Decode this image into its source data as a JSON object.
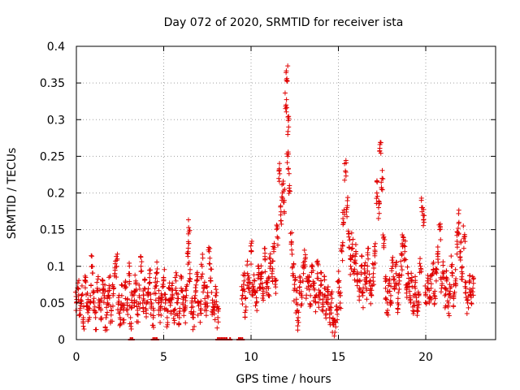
{
  "chart_data": {
    "type": "scatter",
    "title": "Day 072 of 2020, SRMTID for receiver ista",
    "xlabel": "GPS time / hours",
    "ylabel": "SRMTID / TECUs",
    "xlim": [
      0,
      24
    ],
    "ylim": [
      0,
      0.4
    ],
    "x_ticks": [
      0,
      5,
      10,
      15,
      20
    ],
    "x_tick_labels": [
      "0",
      "5",
      "10",
      "15",
      "20"
    ],
    "y_ticks": [
      0,
      0.05,
      0.1,
      0.15,
      0.2,
      0.25,
      0.3,
      0.35,
      0.4
    ],
    "y_tick_labels": [
      "0",
      "0.05",
      "0.1",
      "0.15",
      "0.2",
      "0.25",
      "0.3",
      "0.35",
      "0.4"
    ],
    "grid": true,
    "marker": "+",
    "color": "#e00000",
    "series": [
      {
        "name": "SRMTID",
        "points": [
          [
            0.0,
            0.05
          ],
          [
            0.1,
            0.07
          ],
          [
            0.2,
            0.04
          ],
          [
            0.3,
            0.06
          ],
          [
            0.4,
            0.03
          ],
          [
            0.5,
            0.08
          ],
          [
            0.6,
            0.05
          ],
          [
            0.7,
            0.04
          ],
          [
            0.8,
            0.06
          ],
          [
            0.9,
            0.1
          ],
          [
            1.0,
            0.05
          ],
          [
            1.1,
            0.03
          ],
          [
            1.2,
            0.07
          ],
          [
            1.3,
            0.05
          ],
          [
            1.4,
            0.04
          ],
          [
            1.5,
            0.08
          ],
          [
            1.6,
            0.06
          ],
          [
            1.7,
            0.03
          ],
          [
            1.8,
            0.05
          ],
          [
            1.9,
            0.07
          ],
          [
            2.0,
            0.04
          ],
          [
            2.1,
            0.06
          ],
          [
            2.2,
            0.09
          ],
          [
            2.3,
            0.1
          ],
          [
            2.4,
            0.05
          ],
          [
            2.5,
            0.03
          ],
          [
            2.6,
            0.06
          ],
          [
            2.7,
            0.04
          ],
          [
            2.8,
            0.07
          ],
          [
            2.9,
            0.05
          ],
          [
            3.0,
            0.09
          ],
          [
            3.1,
            0.03
          ],
          [
            3.2,
            0.06
          ],
          [
            3.3,
            0.05
          ],
          [
            3.4,
            0.08
          ],
          [
            3.5,
            0.04
          ],
          [
            3.6,
            0.06
          ],
          [
            3.7,
            0.1
          ],
          [
            3.8,
            0.05
          ],
          [
            3.9,
            0.07
          ],
          [
            4.0,
            0.04
          ],
          [
            4.1,
            0.06
          ],
          [
            4.2,
            0.09
          ],
          [
            4.3,
            0.05
          ],
          [
            4.4,
            0.03
          ],
          [
            4.5,
            0.07
          ],
          [
            4.6,
            0.09
          ],
          [
            4.7,
            0.05
          ],
          [
            4.8,
            0.04
          ],
          [
            4.9,
            0.06
          ],
          [
            5.0,
            0.08
          ],
          [
            5.1,
            0.05
          ],
          [
            5.2,
            0.03
          ],
          [
            5.3,
            0.07
          ],
          [
            5.4,
            0.05
          ],
          [
            5.5,
            0.06
          ],
          [
            5.6,
            0.04
          ],
          [
            5.7,
            0.08
          ],
          [
            5.8,
            0.05
          ],
          [
            5.9,
            0.03
          ],
          [
            6.0,
            0.07
          ],
          [
            6.1,
            0.05
          ],
          [
            6.2,
            0.04
          ],
          [
            6.3,
            0.06
          ],
          [
            6.4,
            0.12
          ],
          [
            6.45,
            0.147
          ],
          [
            6.5,
            0.09
          ],
          [
            6.6,
            0.05
          ],
          [
            6.7,
            0.03
          ],
          [
            6.8,
            0.06
          ],
          [
            6.9,
            0.08
          ],
          [
            7.0,
            0.05
          ],
          [
            7.1,
            0.04
          ],
          [
            7.2,
            0.1
          ],
          [
            7.3,
            0.07
          ],
          [
            7.4,
            0.05
          ],
          [
            7.5,
            0.06
          ],
          [
            7.6,
            0.12
          ],
          [
            7.7,
            0.08
          ],
          [
            7.8,
            0.05
          ],
          [
            7.9,
            0.04
          ],
          [
            8.0,
            0.06
          ],
          [
            8.1,
            0.03
          ],
          [
            9.5,
            0.06
          ],
          [
            9.6,
            0.08
          ],
          [
            9.7,
            0.04
          ],
          [
            9.8,
            0.09
          ],
          [
            9.9,
            0.07
          ],
          [
            10.0,
            0.12
          ],
          [
            10.1,
            0.06
          ],
          [
            10.2,
            0.08
          ],
          [
            10.3,
            0.05
          ],
          [
            10.4,
            0.1
          ],
          [
            10.5,
            0.07
          ],
          [
            10.6,
            0.09
          ],
          [
            10.7,
            0.06
          ],
          [
            10.8,
            0.11
          ],
          [
            10.9,
            0.08
          ],
          [
            11.0,
            0.07
          ],
          [
            11.1,
            0.1
          ],
          [
            11.2,
            0.09
          ],
          [
            11.3,
            0.12
          ],
          [
            11.4,
            0.08
          ],
          [
            11.5,
            0.14
          ],
          [
            11.6,
            0.23
          ],
          [
            11.7,
            0.17
          ],
          [
            11.8,
            0.2
          ],
          [
            11.9,
            0.19
          ],
          [
            12.0,
            0.32
          ],
          [
            12.05,
            0.356
          ],
          [
            12.1,
            0.25
          ],
          [
            12.15,
            0.29
          ],
          [
            12.2,
            0.21
          ],
          [
            12.3,
            0.13
          ],
          [
            12.4,
            0.09
          ],
          [
            12.5,
            0.07
          ],
          [
            12.6,
            0.05
          ],
          [
            12.7,
            0.03
          ],
          [
            12.8,
            0.08
          ],
          [
            12.9,
            0.06
          ],
          [
            13.0,
            0.09
          ],
          [
            13.1,
            0.11
          ],
          [
            13.2,
            0.07
          ],
          [
            13.3,
            0.08
          ],
          [
            13.4,
            0.06
          ],
          [
            13.5,
            0.1
          ],
          [
            13.6,
            0.07
          ],
          [
            13.7,
            0.05
          ],
          [
            13.8,
            0.09
          ],
          [
            13.9,
            0.06
          ],
          [
            14.0,
            0.08
          ],
          [
            14.1,
            0.05
          ],
          [
            14.2,
            0.07
          ],
          [
            14.3,
            0.04
          ],
          [
            14.4,
            0.06
          ],
          [
            14.5,
            0.03
          ],
          [
            14.6,
            0.05
          ],
          [
            14.7,
            0.02
          ],
          [
            14.8,
            0.01
          ],
          [
            14.9,
            0.04
          ],
          [
            15.0,
            0.08
          ],
          [
            15.1,
            0.06
          ],
          [
            15.2,
            0.12
          ],
          [
            15.3,
            0.16
          ],
          [
            15.4,
            0.23
          ],
          [
            15.5,
            0.18
          ],
          [
            15.6,
            0.14
          ],
          [
            15.7,
            0.1
          ],
          [
            15.8,
            0.13
          ],
          [
            15.9,
            0.09
          ],
          [
            16.0,
            0.12
          ],
          [
            16.1,
            0.08
          ],
          [
            16.2,
            0.07
          ],
          [
            16.3,
            0.1
          ],
          [
            16.4,
            0.06
          ],
          [
            16.5,
            0.09
          ],
          [
            16.6,
            0.07
          ],
          [
            16.7,
            0.11
          ],
          [
            16.8,
            0.08
          ],
          [
            16.9,
            0.06
          ],
          [
            17.0,
            0.09
          ],
          [
            17.1,
            0.12
          ],
          [
            17.2,
            0.2
          ],
          [
            17.3,
            0.18
          ],
          [
            17.4,
            0.269
          ],
          [
            17.5,
            0.22
          ],
          [
            17.6,
            0.14
          ],
          [
            17.7,
            0.07
          ],
          [
            17.8,
            0.05
          ],
          [
            17.9,
            0.08
          ],
          [
            18.0,
            0.06
          ],
          [
            18.1,
            0.1
          ],
          [
            18.2,
            0.07
          ],
          [
            18.3,
            0.09
          ],
          [
            18.4,
            0.05
          ],
          [
            18.5,
            0.08
          ],
          [
            18.6,
            0.1
          ],
          [
            18.7,
            0.14
          ],
          [
            18.8,
            0.12
          ],
          [
            18.9,
            0.07
          ],
          [
            19.0,
            0.09
          ],
          [
            19.1,
            0.06
          ],
          [
            19.2,
            0.08
          ],
          [
            19.3,
            0.05
          ],
          [
            19.4,
            0.07
          ],
          [
            19.5,
            0.04
          ],
          [
            19.6,
            0.06
          ],
          [
            19.7,
            0.1
          ],
          [
            19.8,
            0.18
          ],
          [
            19.9,
            0.16
          ],
          [
            20.0,
            0.06
          ],
          [
            20.1,
            0.08
          ],
          [
            20.2,
            0.05
          ],
          [
            20.3,
            0.07
          ],
          [
            20.4,
            0.09
          ],
          [
            20.5,
            0.06
          ],
          [
            20.6,
            0.08
          ],
          [
            20.7,
            0.12
          ],
          [
            20.8,
            0.15
          ],
          [
            20.9,
            0.07
          ],
          [
            21.0,
            0.09
          ],
          [
            21.1,
            0.06
          ],
          [
            21.2,
            0.08
          ],
          [
            21.3,
            0.05
          ],
          [
            21.4,
            0.07
          ],
          [
            21.5,
            0.1
          ],
          [
            21.6,
            0.06
          ],
          [
            21.7,
            0.08
          ],
          [
            21.8,
            0.13
          ],
          [
            21.9,
            0.16
          ],
          [
            22.0,
            0.12
          ],
          [
            22.1,
            0.09
          ],
          [
            22.2,
            0.14
          ],
          [
            22.3,
            0.07
          ],
          [
            22.4,
            0.05
          ],
          [
            22.5,
            0.08
          ],
          [
            22.6,
            0.06
          ],
          [
            22.7,
            0.07
          ]
        ]
      }
    ],
    "zero_points_x": [
      3.1,
      3.2,
      4.4,
      4.5,
      4.6,
      8.1,
      8.2,
      8.3,
      8.4,
      8.5,
      8.6,
      8.8,
      9.3,
      9.4,
      9.5
    ]
  }
}
